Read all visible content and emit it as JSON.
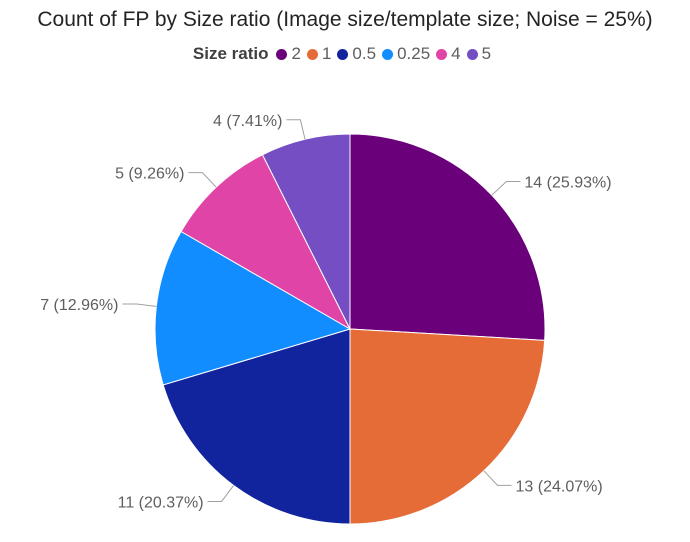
{
  "chart_data": {
    "type": "pie",
    "title": "Count of FP by Size ratio (Image size/template size; Noise = 25%)",
    "legend_title": "Size ratio",
    "legend_position": "top",
    "slices": [
      {
        "category": "2",
        "value": 14,
        "label": "14 (25.93%)",
        "color": "#6b007b"
      },
      {
        "category": "1",
        "value": 13,
        "label": "13 (24.07%)",
        "color": "#e66c37"
      },
      {
        "category": "0.5",
        "value": 11,
        "label": "11 (20.37%)",
        "color": "#12239e"
      },
      {
        "category": "0.25",
        "value": 7,
        "label": "7 (12.96%)",
        "color": "#118dff"
      },
      {
        "category": "4",
        "value": 5,
        "label": "5 (9.26%)",
        "color": "#e044a7"
      },
      {
        "category": "5",
        "value": 4,
        "label": "4 (7.41%)",
        "color": "#744ec2"
      }
    ]
  }
}
